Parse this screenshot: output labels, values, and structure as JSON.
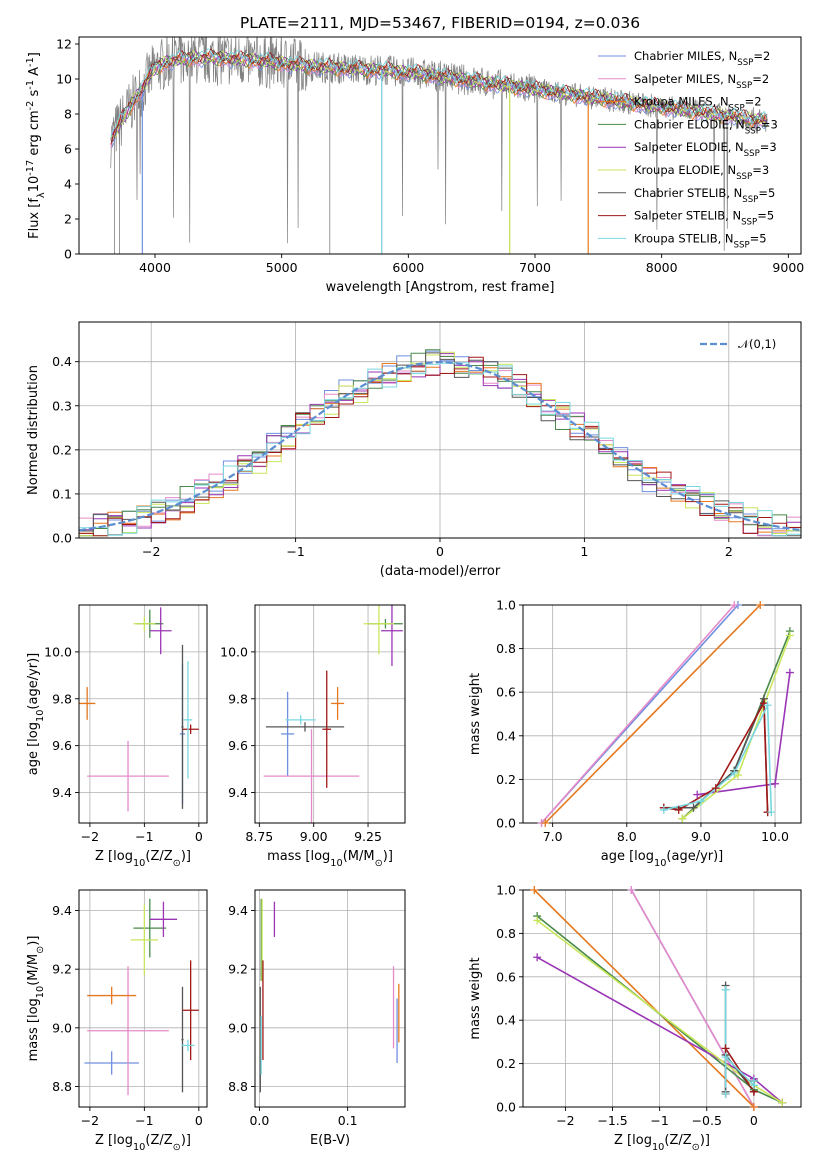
{
  "colors": {
    "chabrier_miles": "#6f8fe0",
    "salpeter_miles": "#e58ac8",
    "kroupa_miles": "#e6781e",
    "chabrier_elodie": "#4a8a4a",
    "salpeter_elodie": "#9a35b5",
    "kroupa_elodie": "#c8e65a",
    "chabrier_stelib": "#555555",
    "salpeter_stelib": "#a01818",
    "kroupa_stelib": "#78d8e0",
    "data": "#808080",
    "gauss": "#5b8ed0"
  },
  "chart_data": [
    {
      "type": "line",
      "title": "PLATE=2111, MJD=53467, FIBERID=0194, z=0.036",
      "xlabel": "wavelength [Angstrom, rest frame]",
      "ylabel": "Flux [f$_\\lambda$10$^{-17}$ erg cm$^{-2}$ s$^{-1}$ A$^{-1}$]",
      "xlim": [
        3400,
        9100
      ],
      "ylim": [
        0,
        12.4
      ],
      "xticks": [
        4000,
        5000,
        6000,
        7000,
        8000,
        9000
      ],
      "yticks": [
        0,
        2,
        4,
        6,
        8,
        10,
        12
      ],
      "legend_position": "top-right",
      "series": [
        {
          "name": "Chabrier MILES, N$_{SSP}$=2"
        },
        {
          "name": "Salpeter MILES, N$_{SSP}$=2"
        },
        {
          "name": "Kroupa MILES, N$_{SSP}$=2"
        },
        {
          "name": "Chabrier ELODIE, N$_{SSP}$=3"
        },
        {
          "name": "Salpeter ELODIE, N$_{SSP}$=3"
        },
        {
          "name": "Kroupa ELODIE, N$_{SSP}$=3"
        },
        {
          "name": "Chabrier STELIB, N$_{SSP}$=5"
        },
        {
          "name": "Salpeter STELIB, N$_{SSP}$=5"
        },
        {
          "name": "Kroupa STELIB, N$_{SSP}$=5"
        }
      ],
      "continuum": {
        "x": [
          3650,
          3750,
          3900,
          4000,
          4100,
          4300,
          4500,
          4700,
          4900,
          5100,
          5300,
          5500,
          5800,
          6100,
          6400,
          6700,
          7000,
          7300,
          7600,
          7900,
          8200,
          8500,
          8840
        ],
        "y": [
          6.5,
          7.8,
          9.5,
          10.6,
          11.0,
          11.2,
          11.2,
          11.1,
          11.0,
          10.8,
          10.7,
          10.6,
          10.5,
          10.3,
          10.0,
          9.7,
          9.4,
          9.1,
          8.8,
          8.5,
          8.2,
          7.9,
          7.6
        ]
      },
      "dropouts": [
        {
          "series": "Chabrier MILES, N$_{SSP}$=2",
          "x": 3900
        },
        {
          "series": "Kroupa MILES, N$_{SSP}$=2",
          "x": 7420
        },
        {
          "series": "Kroupa STELIB, N$_{SSP}$=5",
          "x": 5790
        },
        {
          "series": "Kroupa ELODIE, N$_{SSP}$=3",
          "x": 6800
        }
      ],
      "grid": false,
      "grid_axis": "",
      "bottom_tick_labels": true,
      "tick_fmt": "int"
    },
    {
      "type": "line",
      "title": "",
      "xlabel": "(data-model)/error",
      "ylabel": "Normed distribution",
      "xlim": [
        -2.5,
        2.5
      ],
      "ylim": [
        0,
        0.49
      ],
      "xticks": [
        -2,
        -1,
        0,
        1,
        2
      ],
      "yticks": [
        0.0,
        0.1,
        0.2,
        0.3,
        0.4
      ],
      "grid": true,
      "grid_axis": "both",
      "bottom_tick_labels": true,
      "tick_fmt": "minus1",
      "legend_position": "top-right",
      "gaussian": {
        "name": "$\\mathcal{N}(0,1)$",
        "mean": 0,
        "sigma": 1
      },
      "hist_bin_width": 0.1,
      "series_style": "step histograms, one per model, following N(0,1) with noise"
    },
    {
      "type": "scatter",
      "title": "",
      "xlabel": "Z [log$_{10}$(Z/Z$_\\odot$)]",
      "ylabel": "age  [log$_{10}$(age/yr)]",
      "xlim": [
        -2.2,
        0.15
      ],
      "ylim": [
        9.27,
        10.2
      ],
      "xticks": [
        -2,
        -1,
        0
      ],
      "yticks": [
        9.4,
        9.6,
        9.8,
        10.0
      ],
      "grid": true,
      "grid_axis": "both",
      "bottom_tick_labels": true,
      "tick_fmt": "minus1",
      "points": [
        {
          "series": "Chabrier MILES, N$_{SSP}$=2",
          "x": -0.3,
          "xerr": 0.05,
          "y": 9.65,
          "yerr": 0.3
        },
        {
          "series": "Salpeter MILES, N$_{SSP}$=2",
          "x": -1.3,
          "xerr": 0.75,
          "y": 9.47,
          "yerr": 0.15
        },
        {
          "series": "Kroupa MILES, N$_{SSP}$=2",
          "x": -2.05,
          "xerr": 0.15,
          "y": 9.78,
          "yerr": 0.07
        },
        {
          "series": "Chabrier ELODIE, N$_{SSP}$=3",
          "x": -0.9,
          "xerr": 0.25,
          "y": 10.12,
          "yerr": 0.06
        },
        {
          "series": "Salpeter ELODIE, N$_{SSP}$=3",
          "x": -0.7,
          "xerr": 0.2,
          "y": 10.09,
          "yerr": 0.1
        },
        {
          "series": "Kroupa ELODIE, N$_{SSP}$=3",
          "x": -1.0,
          "xerr": 0.2,
          "y": 10.12,
          "yerr": 0.03
        },
        {
          "series": "Chabrier STELIB, N$_{SSP}$=5",
          "x": -0.3,
          "xerr": 0.02,
          "y": 9.68,
          "yerr": 0.35
        },
        {
          "series": "Salpeter STELIB, N$_{SSP}$=5",
          "x": -0.15,
          "xerr": 0.15,
          "y": 9.67,
          "yerr": 0.02
        },
        {
          "series": "Kroupa STELIB, N$_{SSP}$=5",
          "x": -0.2,
          "xerr": 0.08,
          "y": 9.71,
          "yerr": 0.25
        }
      ]
    },
    {
      "type": "scatter",
      "title": "",
      "xlabel": "mass [log$_{10}$(M/M$_\\odot$)]",
      "ylabel": "",
      "xlim": [
        8.73,
        9.42
      ],
      "ylim": [
        9.27,
        10.2
      ],
      "xticks": [
        8.75,
        9.0,
        9.25
      ],
      "yticks": [
        9.4,
        9.6,
        9.8,
        10.0
      ],
      "grid": true,
      "grid_axis": "both",
      "bottom_tick_labels": true,
      "tick_fmt": "2",
      "points": [
        {
          "series": "Chabrier MILES, N$_{SSP}$=2",
          "x": 8.88,
          "xerr": 0.03,
          "y": 9.65,
          "yerr": 0.18
        },
        {
          "series": "Salpeter MILES, N$_{SSP}$=2",
          "x": 8.99,
          "xerr": 0.22,
          "y": 9.47,
          "yerr": 0.2
        },
        {
          "series": "Kroupa MILES, N$_{SSP}$=2",
          "x": 9.11,
          "xerr": 0.03,
          "y": 9.78,
          "yerr": 0.07
        },
        {
          "series": "Chabrier ELODIE, N$_{SSP}$=3",
          "x": 9.33,
          "xerr": 0.08,
          "y": 10.12,
          "yerr": 0.02
        },
        {
          "series": "Salpeter ELODIE, N$_{SSP}$=3",
          "x": 9.36,
          "xerr": 0.05,
          "y": 10.09,
          "yerr": 0.15
        },
        {
          "series": "Kroupa ELODIE, N$_{SSP}$=3",
          "x": 9.3,
          "xerr": 0.07,
          "y": 10.12,
          "yerr": 0.13
        },
        {
          "series": "Chabrier STELIB, N$_{SSP}$=5",
          "x": 8.96,
          "xerr": 0.18,
          "y": 9.68,
          "yerr": 0.02
        },
        {
          "series": "Salpeter STELIB, N$_{SSP}$=5",
          "x": 9.06,
          "xerr": 0.02,
          "y": 9.67,
          "yerr": 0.25
        },
        {
          "series": "Kroupa STELIB, N$_{SSP}$=5",
          "x": 8.94,
          "xerr": 0.07,
          "y": 9.71,
          "yerr": 0.02
        }
      ]
    },
    {
      "type": "scatter",
      "title": "",
      "xlabel": "Z [log$_{10}$(Z/Z$_\\odot$)]",
      "ylabel": "mass [log$_{10}$(M/M$_\\odot$)]",
      "xlim": [
        -2.2,
        0.15
      ],
      "ylim": [
        8.73,
        9.47
      ],
      "xticks": [
        -2,
        -1,
        0
      ],
      "yticks": [
        8.8,
        9.0,
        9.2,
        9.4
      ],
      "grid": true,
      "grid_axis": "both",
      "bottom_tick_labels": true,
      "tick_fmt": "minus1",
      "points": [
        {
          "series": "Chabrier MILES, N$_{SSP}$=2",
          "x": -1.6,
          "xerr": 0.5,
          "y": 8.88,
          "yerr": 0.04
        },
        {
          "series": "Salpeter MILES, N$_{SSP}$=2",
          "x": -1.3,
          "xerr": 0.75,
          "y": 8.99,
          "yerr": 0.22
        },
        {
          "series": "Kroupa MILES, N$_{SSP}$=2",
          "x": -1.6,
          "xerr": 0.45,
          "y": 9.11,
          "yerr": 0.03
        },
        {
          "series": "Chabrier ELODIE, N$_{SSP}$=3",
          "x": -0.9,
          "xerr": 0.3,
          "y": 9.34,
          "yerr": 0.1
        },
        {
          "series": "Salpeter ELODIE, N$_{SSP}$=3",
          "x": -0.65,
          "xerr": 0.25,
          "y": 9.37,
          "yerr": 0.06
        },
        {
          "series": "Kroupa ELODIE, N$_{SSP}$=3",
          "x": -1.0,
          "xerr": 0.25,
          "y": 9.3,
          "yerr": 0.12
        },
        {
          "series": "Chabrier STELIB, N$_{SSP}$=5",
          "x": -0.3,
          "xerr": 0.02,
          "y": 8.96,
          "yerr": 0.18
        },
        {
          "series": "Salpeter STELIB, N$_{SSP}$=5",
          "x": -0.15,
          "xerr": 0.15,
          "y": 9.06,
          "yerr": 0.17
        },
        {
          "series": "Kroupa STELIB, N$_{SSP}$=5",
          "x": -0.2,
          "xerr": 0.12,
          "y": 8.94,
          "yerr": 0.02
        }
      ]
    },
    {
      "type": "scatter",
      "title": "",
      "xlabel": "E(B-V)",
      "ylabel": "",
      "xlim": [
        -0.005,
        0.165
      ],
      "ylim": [
        8.73,
        9.47
      ],
      "xticks": [
        0.0,
        0.1
      ],
      "yticks": [
        8.8,
        9.0,
        9.2,
        9.4
      ],
      "grid": true,
      "grid_axis": "both",
      "bottom_tick_labels": true,
      "tick_fmt": "1",
      "points": [
        {
          "series": "Chabrier MILES, N$_{SSP}$=2",
          "x": 0.156,
          "xerr": 0,
          "y": 8.99,
          "yerr": 0.11
        },
        {
          "series": "Salpeter MILES, N$_{SSP}$=2",
          "x": 0.152,
          "xerr": 0,
          "y": 9.07,
          "yerr": 0.14
        },
        {
          "series": "Kroupa MILES, N$_{SSP}$=2",
          "x": 0.158,
          "xerr": 0,
          "y": 9.05,
          "yerr": 0.1
        },
        {
          "series": "Chabrier ELODIE, N$_{SSP}$=3",
          "x": 0.002,
          "xerr": 0,
          "y": 9.3,
          "yerr": 0.14
        },
        {
          "series": "Salpeter ELODIE, N$_{SSP}$=3",
          "x": 0.017,
          "xerr": 0,
          "y": 9.37,
          "yerr": 0.06
        },
        {
          "series": "Kroupa ELODIE, N$_{SSP}$=3",
          "x": 0.003,
          "xerr": 0,
          "y": 9.3,
          "yerr": 0.14
        },
        {
          "series": "Chabrier STELIB, N$_{SSP}$=5",
          "x": 0.001,
          "xerr": 0,
          "y": 8.96,
          "yerr": 0.18
        },
        {
          "series": "Salpeter STELIB, N$_{SSP}$=5",
          "x": 0.004,
          "xerr": 0,
          "y": 9.06,
          "yerr": 0.17
        },
        {
          "series": "Kroupa STELIB, N$_{SSP}$=5",
          "x": 0.002,
          "xerr": 0,
          "y": 8.94,
          "yerr": 0.1
        }
      ]
    },
    {
      "type": "line",
      "title": "",
      "xlabel": "age  [log$_{10}$(age/yr)]",
      "ylabel": "mass weight",
      "xlim": [
        6.6,
        10.35
      ],
      "ylim": [
        0,
        1.0
      ],
      "xticks": [
        7,
        8,
        9,
        10
      ],
      "yticks": [
        0.0,
        0.2,
        0.4,
        0.6,
        0.8,
        1.0
      ],
      "grid": true,
      "grid_axis": "both",
      "bottom_tick_labels": true,
      "tick_fmt": "1",
      "series": [
        {
          "name": "Chabrier MILES, N$_{SSP}$=2",
          "x": [
            6.85,
            9.5
          ],
          "y": [
            0.0,
            1.0
          ]
        },
        {
          "name": "Salpeter MILES, N$_{SSP}$=2",
          "x": [
            6.85,
            9.45
          ],
          "y": [
            0.0,
            1.0
          ]
        },
        {
          "name": "Kroupa MILES, N$_{SSP}$=2",
          "x": [
            6.9,
            9.8
          ],
          "y": [
            0.0,
            1.0
          ]
        },
        {
          "name": "Chabrier ELODIE, N$_{SSP}$=3",
          "x": [
            8.75,
            9.45,
            10.2
          ],
          "y": [
            0.02,
            0.24,
            0.88
          ]
        },
        {
          "name": "Salpeter ELODIE, N$_{SSP}$=3",
          "x": [
            8.95,
            10.0,
            10.2
          ],
          "y": [
            0.13,
            0.18,
            0.69
          ]
        },
        {
          "name": "Kroupa ELODIE, N$_{SSP}$=3",
          "x": [
            8.75,
            9.5,
            10.2
          ],
          "y": [
            0.02,
            0.22,
            0.86
          ]
        },
        {
          "name": "Chabrier STELIB, N$_{SSP}$=5",
          "x": [
            8.5,
            8.9,
            9.45,
            9.85,
            9.9
          ],
          "y": [
            0.07,
            0.07,
            0.24,
            0.57,
            0.05
          ]
        },
        {
          "name": "Salpeter STELIB, N$_{SSP}$=5",
          "x": [
            8.5,
            8.7,
            9.2,
            9.85,
            9.9
          ],
          "y": [
            0.07,
            0.06,
            0.16,
            0.55,
            0.05
          ]
        },
        {
          "name": "Kroupa STELIB, N$_{SSP}$=5",
          "x": [
            8.5,
            9.0,
            9.45,
            9.9,
            9.95
          ],
          "y": [
            0.06,
            0.1,
            0.23,
            0.54,
            0.05
          ]
        }
      ]
    },
    {
      "type": "line",
      "title": "",
      "xlabel": "Z [log$_{10}$(Z/Z$_\\odot$)]",
      "ylabel": "mass weight",
      "xlim": [
        -2.45,
        0.5
      ],
      "ylim": [
        0,
        1.0
      ],
      "xticks": [
        -2.0,
        -1.5,
        -1.0,
        -0.5,
        0.0
      ],
      "yticks": [
        0.0,
        0.2,
        0.4,
        0.6,
        0.8,
        1.0
      ],
      "grid": true,
      "grid_axis": "both",
      "bottom_tick_labels": true,
      "tick_fmt": "minus1",
      "series": [
        {
          "name": "Chabrier MILES, N$_{SSP}$=2",
          "x": [
            -1.3,
            0.0
          ],
          "y": [
            1.0,
            0.0
          ]
        },
        {
          "name": "Salpeter MILES, N$_{SSP}$=2",
          "x": [
            -1.3,
            0.0
          ],
          "y": [
            1.0,
            0.0
          ]
        },
        {
          "name": "Kroupa MILES, N$_{SSP}$=2",
          "x": [
            -2.33,
            0.0
          ],
          "y": [
            1.0,
            0.0
          ]
        },
        {
          "name": "Chabrier ELODIE, N$_{SSP}$=3",
          "x": [
            -2.3,
            0.0,
            0.3
          ],
          "y": [
            0.88,
            0.08,
            0.02
          ]
        },
        {
          "name": "Salpeter ELODIE, N$_{SSP}$=3",
          "x": [
            -2.3,
            0.0,
            0.3
          ],
          "y": [
            0.69,
            0.13,
            0.02
          ]
        },
        {
          "name": "Kroupa ELODIE, N$_{SSP}$=3",
          "x": [
            -2.3,
            0.0,
            0.3
          ],
          "y": [
            0.86,
            0.1,
            0.02
          ]
        },
        {
          "name": "Chabrier STELIB, N$_{SSP}$=5",
          "x": [
            -0.3,
            -0.3,
            -0.3,
            0.0,
            0.0
          ],
          "y": [
            0.56,
            0.07,
            0.24,
            0.07,
            0.12
          ]
        },
        {
          "name": "Salpeter STELIB, N$_{SSP}$=5",
          "x": [
            -0.3,
            -0.3,
            0.0,
            0.0
          ],
          "y": [
            0.06,
            0.27,
            0.07,
            0.12
          ]
        },
        {
          "name": "Kroupa STELIB, N$_{SSP}$=5",
          "x": [
            -0.3,
            -0.3,
            -0.3,
            0.0,
            0.0
          ],
          "y": [
            0.54,
            0.06,
            0.23,
            0.1,
            0.12
          ]
        }
      ]
    }
  ]
}
